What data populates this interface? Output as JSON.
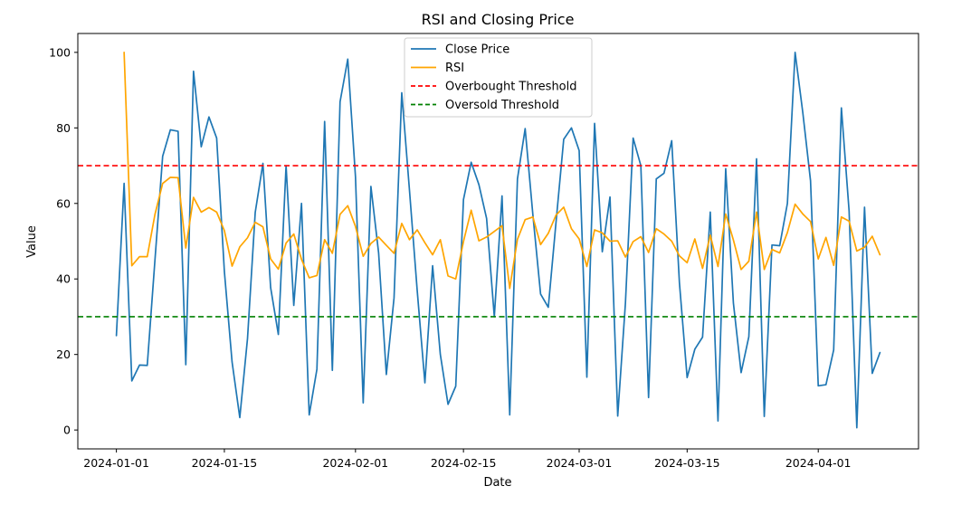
{
  "chart_data": {
    "type": "line",
    "title": "RSI and Closing Price",
    "xlabel": "Date",
    "ylabel": "Value",
    "xlim": [
      "2023-12-27",
      "2024-04-14"
    ],
    "ylim": [
      -5,
      105
    ],
    "x_ticks": [
      "2024-01-01",
      "2024-01-15",
      "2024-02-01",
      "2024-02-15",
      "2024-03-01",
      "2024-03-15",
      "2024-04-01"
    ],
    "y_ticks": [
      0,
      20,
      40,
      60,
      80,
      100
    ],
    "grid": false,
    "legend": {
      "placement": "top-center"
    },
    "start_date": "2024-01-01",
    "series": [
      {
        "name": "Close Price",
        "color": "#1f77b4",
        "style": "solid",
        "values": [
          25,
          65.3,
          13,
          17.2,
          17.1,
          45,
          72.5,
          79.5,
          79.1,
          17.3,
          95,
          75,
          82.9,
          77.3,
          42,
          18,
          3.3,
          24.2,
          57.6,
          70.6,
          37.7,
          25.3,
          70,
          33,
          60,
          4,
          16.1,
          81.7,
          15.8,
          86.9,
          98.2,
          67,
          7.2,
          64.5,
          46.9,
          14.7,
          35,
          89.3,
          63.5,
          37,
          12.5,
          43.5,
          20,
          6.8,
          11.6,
          61,
          70.9,
          65,
          56,
          30,
          62,
          4,
          66.5,
          79.8,
          57,
          36,
          32.5,
          55,
          77,
          80,
          74,
          14,
          81.2,
          47.2,
          61.7,
          3.7,
          33.6,
          77.3,
          70,
          8.6,
          66.5,
          68,
          76.6,
          39,
          13.9,
          21.4,
          24.6,
          57.7,
          2.4,
          69.2,
          33.6,
          15.2,
          24.7,
          71.8,
          3.6,
          49,
          48.8,
          60,
          100,
          84,
          66,
          11.7,
          12,
          21.2,
          85.3,
          58,
          0.6,
          59,
          15,
          20.5
        ]
      },
      {
        "name": "RSI",
        "color": "#ffa500",
        "style": "solid",
        "start_index": 1,
        "values": [
          100,
          43.5,
          45.9,
          45.9,
          57.1,
          65.3,
          66.9,
          66.8,
          48.2,
          61.6,
          57.7,
          58.9,
          57.7,
          52.8,
          43.4,
          48.5,
          50.9,
          55,
          53.8,
          45.3,
          42.6,
          49.5,
          51.9,
          45.2,
          40.3,
          40.9,
          50.4,
          46.8,
          57.1,
          59.4,
          53.9,
          46,
          49.4,
          51.1,
          48.9,
          46.8,
          54.7,
          50.4,
          53,
          49.6,
          46.4,
          50.4,
          40.8,
          40,
          49.9,
          58.2,
          50.1,
          51.1,
          52.6,
          54.1,
          37.5,
          50.5,
          55.7,
          56.4,
          49.1,
          52.1,
          56.9,
          59,
          53.3,
          50.6,
          43.3,
          53,
          52.2,
          50,
          50.1,
          45.8,
          49.9,
          51.2,
          47,
          53.3,
          51.9,
          50,
          46.1,
          44.3,
          50.6,
          42.8,
          51.6,
          43.3,
          57.2,
          50.3,
          42.5,
          44.7,
          57.7,
          42.5,
          47.8,
          46.9,
          52.3,
          59.8,
          57.2,
          55.2,
          45.3,
          51,
          43.6,
          56.4,
          55.3,
          47.4,
          48.4,
          51.3,
          46.4
        ]
      },
      {
        "name": "Overbought Threshold",
        "color": "#ff0000",
        "style": "dashed",
        "y": 70
      },
      {
        "name": "Oversold Threshold",
        "color": "#008000",
        "style": "dashed",
        "y": 30
      }
    ]
  }
}
